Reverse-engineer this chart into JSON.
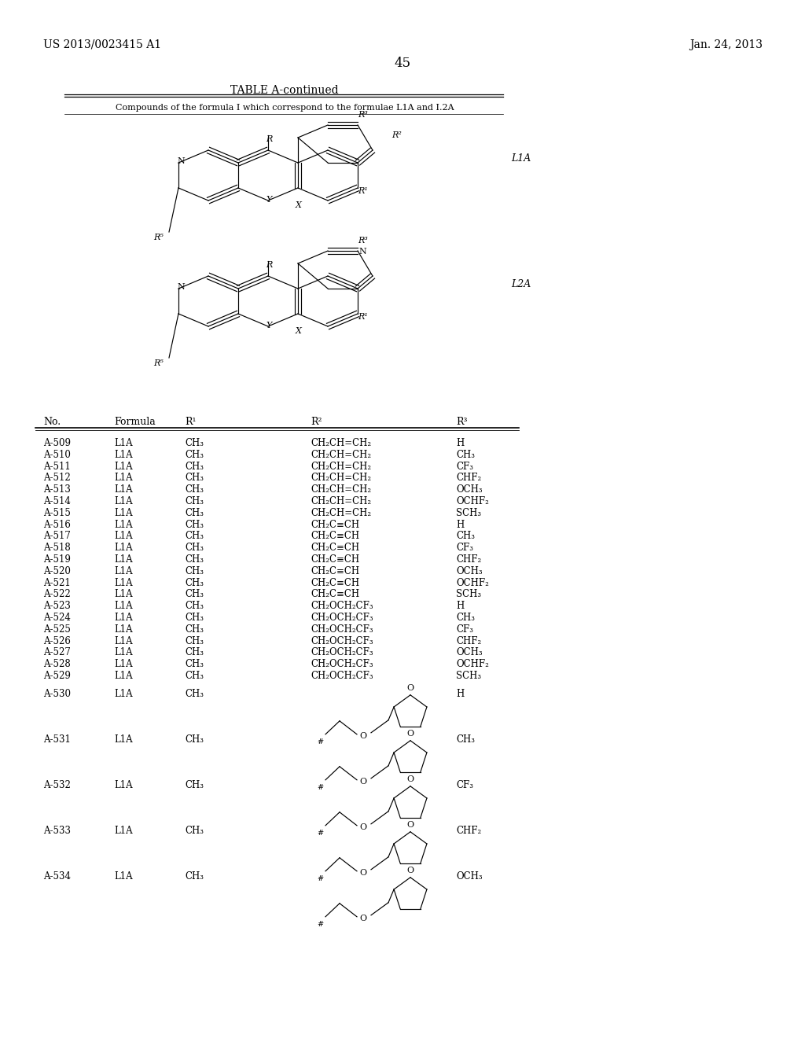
{
  "page_number": "45",
  "patent_number": "US 2013/0023415 A1",
  "patent_date": "Jan. 24, 2013",
  "table_title": "TABLE A-continued",
  "table_subtitle": "Compounds of the formula I which correspond to the formulae L1A and I.2A",
  "formula_label1": "L1A",
  "formula_label2": "L2A",
  "col_headers": [
    "No.",
    "Formula",
    "R¹",
    "R²",
    "R³"
  ],
  "rows": [
    [
      "A-509",
      "L1A",
      "CH₃",
      "CH₂CH=CH₂",
      "H"
    ],
    [
      "A-510",
      "L1A",
      "CH₃",
      "CH₂CH=CH₂",
      "CH₃"
    ],
    [
      "A-511",
      "L1A",
      "CH₃",
      "CH₂CH=CH₂",
      "CF₃"
    ],
    [
      "A-512",
      "L1A",
      "CH₃",
      "CH₂CH=CH₂",
      "CHF₂"
    ],
    [
      "A-513",
      "L1A",
      "CH₃",
      "CH₂CH=CH₂",
      "OCH₃"
    ],
    [
      "A-514",
      "L1A",
      "CH₃",
      "CH₂CH=CH₂",
      "OCHF₂"
    ],
    [
      "A-515",
      "L1A",
      "CH₃",
      "CH₂CH=CH₂",
      "SCH₃"
    ],
    [
      "A-516",
      "L1A",
      "CH₃",
      "CH₂C≡CH",
      "H"
    ],
    [
      "A-517",
      "L1A",
      "CH₃",
      "CH₂C≡CH",
      "CH₃"
    ],
    [
      "A-518",
      "L1A",
      "CH₃",
      "CH₂C≡CH",
      "CF₃"
    ],
    [
      "A-519",
      "L1A",
      "CH₃",
      "CH₂C≡CH",
      "CHF₂"
    ],
    [
      "A-520",
      "L1A",
      "CH₃",
      "CH₂C≡CH",
      "OCH₃"
    ],
    [
      "A-521",
      "L1A",
      "CH₃",
      "CH₂C≡CH",
      "OCHF₂"
    ],
    [
      "A-522",
      "L1A",
      "CH₃",
      "CH₂C≡CH",
      "SCH₃"
    ],
    [
      "A-523",
      "L1A",
      "CH₃",
      "CH₂OCH₂CF₃",
      "H"
    ],
    [
      "A-524",
      "L1A",
      "CH₃",
      "CH₂OCH₂CF₃",
      "CH₃"
    ],
    [
      "A-525",
      "L1A",
      "CH₃",
      "CH₂OCH₂CF₃",
      "CF₃"
    ],
    [
      "A-526",
      "L1A",
      "CH₃",
      "CH₂OCH₂CF₃",
      "CHF₂"
    ],
    [
      "A-527",
      "L1A",
      "CH₃",
      "CH₂OCH₂CF₃",
      "OCH₃"
    ],
    [
      "A-528",
      "L1A",
      "CH₃",
      "CH₂OCH₂CF₃",
      "OCHF₂"
    ],
    [
      "A-529",
      "L1A",
      "CH₃",
      "CH₂OCH₂CF₃",
      "SCH₃"
    ]
  ],
  "struct_rows": [
    [
      "A-530",
      "L1A",
      "CH₃",
      "H"
    ],
    [
      "A-531",
      "L1A",
      "CH₃",
      "CH₃"
    ],
    [
      "A-532",
      "L1A",
      "CH₃",
      "CF₃"
    ],
    [
      "A-533",
      "L1A",
      "CH₃",
      "CHF₂"
    ],
    [
      "A-534",
      "L1A",
      "CH₃",
      "OCH₃"
    ]
  ],
  "bg_color": "#ffffff",
  "text_color": "#000000"
}
